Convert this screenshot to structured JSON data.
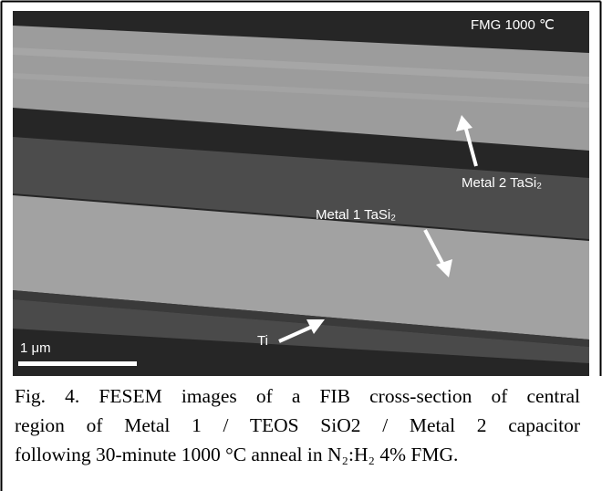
{
  "figure": {
    "image_labels": {
      "condition": "FMG 1000 ℃",
      "metal2": "Metal 2 TaSi₂",
      "metal1": "Metal 1 TaSi₂",
      "ti": "Ti",
      "scale": "1 μm"
    },
    "caption_lines": [
      "Fig. 4. FESEM images of a FIB cross-section of central",
      "region of Metal 1 / TEOS SiO2 / Metal 2 capacitor",
      "following 30-minute 1000 °C anneal in N₂:H₂ 4% FMG."
    ]
  }
}
